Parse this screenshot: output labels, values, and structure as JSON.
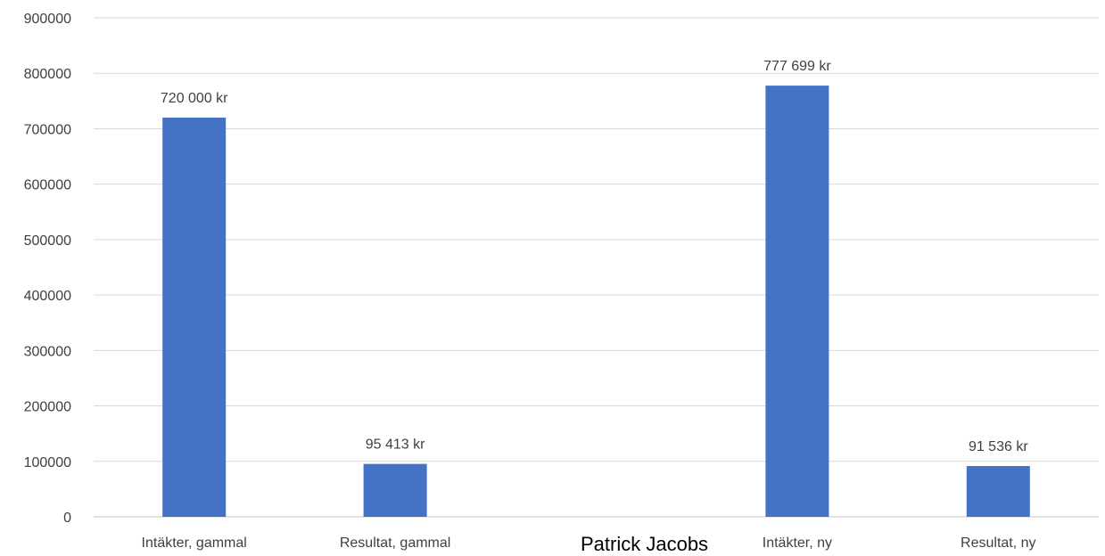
{
  "chart_data": {
    "type": "bar",
    "categories": [
      "Intäkter, gammal",
      "Resultat, gammal",
      "",
      "Intäkter, ny",
      "Resultat, ny"
    ],
    "values": [
      720000,
      95413,
      null,
      777699,
      91536
    ],
    "data_labels": [
      "720 000 kr",
      "95 413 kr",
      "",
      "777 699 kr",
      "91 536 kr"
    ],
    "ylim": [
      0,
      900000
    ],
    "yticks": [
      0,
      100000,
      200000,
      300000,
      400000,
      500000,
      600000,
      700000,
      800000,
      900000
    ],
    "ytick_labels": [
      "0",
      "100000",
      "200000",
      "300000",
      "400000",
      "500000",
      "600000",
      "700000",
      "800000",
      "900000"
    ],
    "grid": true,
    "bar_color": "#4472C4"
  },
  "overlay_text": "Patrick Jacobs"
}
